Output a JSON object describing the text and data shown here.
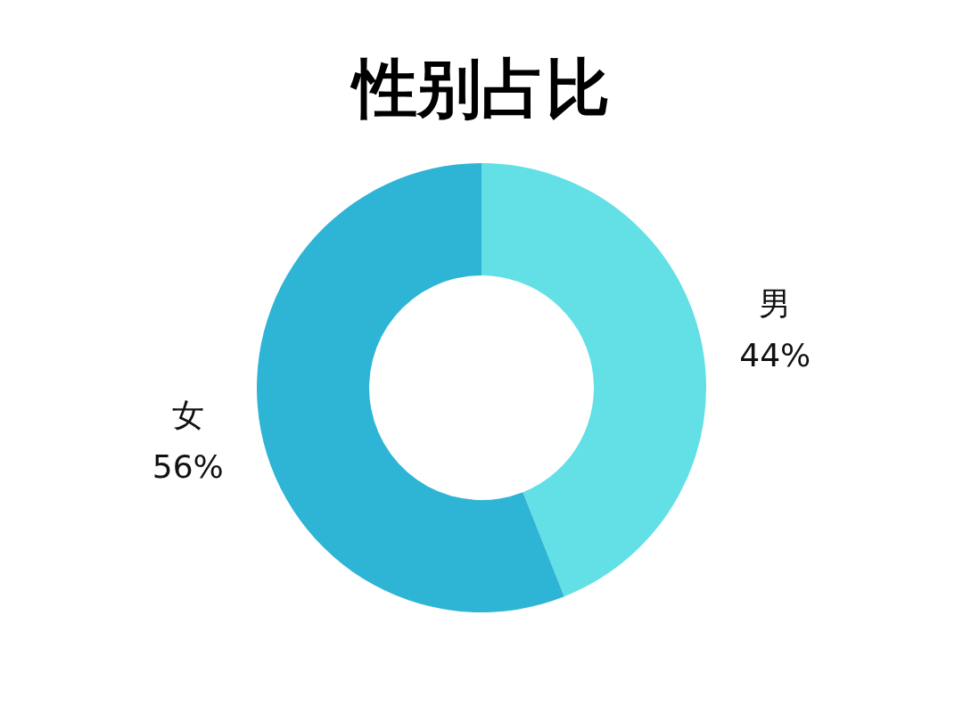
{
  "chart_data": {
    "type": "donut",
    "title": "性别占比",
    "categories": [
      "男",
      "女"
    ],
    "values": [
      44,
      56
    ],
    "value_labels": [
      "44%",
      "56%"
    ],
    "colors": [
      "#62e0e6",
      "#2eb4d4"
    ],
    "legend": false
  }
}
